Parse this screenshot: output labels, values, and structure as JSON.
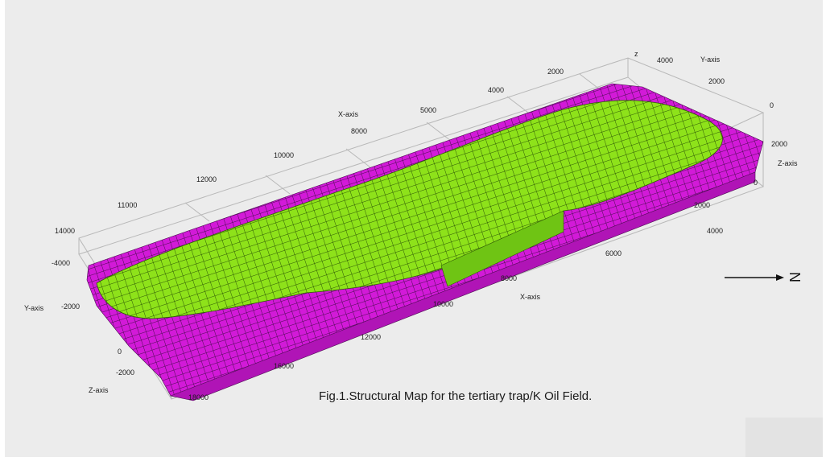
{
  "figure": {
    "caption": "Fig.1.Structural Map for the tertiary trap/K Oil Field.",
    "north_label": "N",
    "colors": {
      "background": "#ececec",
      "oil_zone": "#8ee21a",
      "oil_zone_grid": "#2f5a06",
      "water_zone": "#d21ad8",
      "water_zone_grid": "#4a0d50",
      "axis_box": "#b8b8b8"
    }
  },
  "axes": {
    "x_axis_label": "X-axis",
    "y_axis_label": "Y-axis",
    "z_axis_label": "Z-axis",
    "x_ticks_front": [
      "4000",
      "6000",
      "8000",
      "10000",
      "12000",
      "16000",
      "18000"
    ],
    "x_ticks_back": [
      "2000",
      "4000",
      "5000",
      "8000",
      "10000",
      "12000",
      "11000",
      "14000"
    ],
    "y_ticks_left": [
      "-4000",
      "-2000"
    ],
    "y_ticks_right": [
      "4000",
      "2000"
    ],
    "z_ticks_left": [
      "0",
      "-2000"
    ],
    "z_ticks_right": [
      "0",
      "2000",
      "0",
      "z"
    ],
    "x_ticks_right": [
      "2000"
    ]
  }
}
